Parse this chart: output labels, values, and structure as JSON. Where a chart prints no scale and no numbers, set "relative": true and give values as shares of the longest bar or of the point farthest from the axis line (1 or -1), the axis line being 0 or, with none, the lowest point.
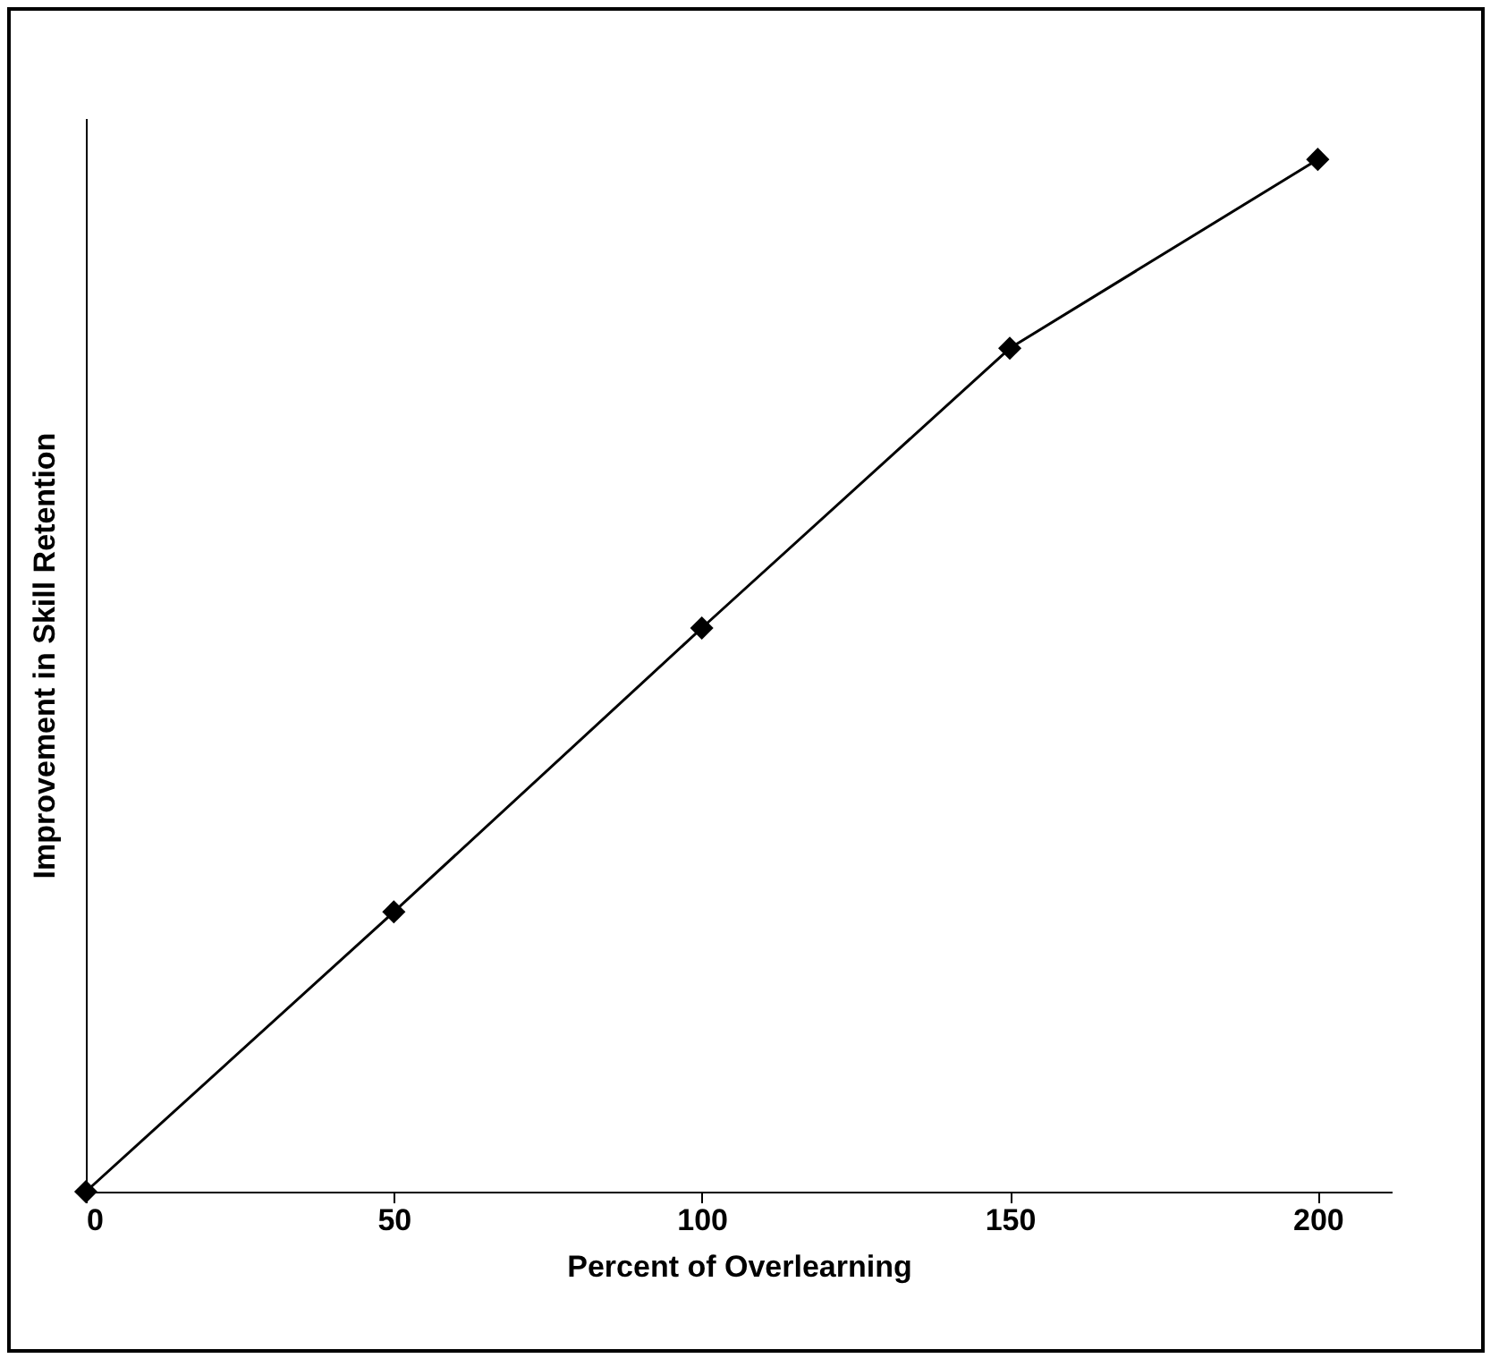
{
  "chart_data": {
    "type": "line",
    "xlabel": "Percent of Overlearning",
    "ylabel": "Improvement in Skill Retention",
    "x": [
      0,
      50,
      100,
      150,
      200
    ],
    "relative": true,
    "series": [
      {
        "color": "#000000",
        "values": [
          0,
          0.271,
          0.546,
          0.817,
          1
        ]
      }
    ],
    "xlim": [
      0,
      212
    ],
    "xticks": [
      0,
      50,
      100,
      150,
      200
    ],
    "grid": false,
    "legend": false,
    "marker": "diamond",
    "line_style": "solid"
  }
}
